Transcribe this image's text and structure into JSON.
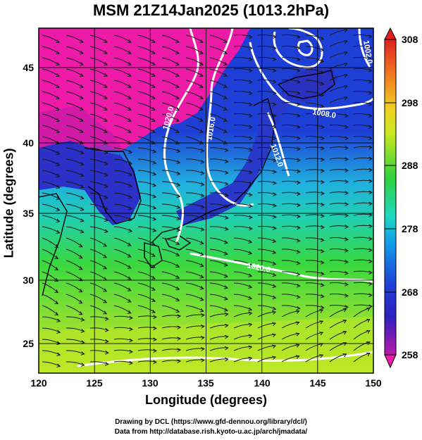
{
  "title": "MSM 21Z14Jan2025 (1013.2hPa)",
  "axes": {
    "xlabel": "Longitude (degrees)",
    "ylabel": "Latitude  (degrees)",
    "xticks": [
      "120",
      "125",
      "130",
      "135",
      "140",
      "145",
      "150"
    ],
    "yticks": [
      "45",
      "40",
      "35",
      "30",
      "25"
    ]
  },
  "colorbar": {
    "ticks": [
      "308",
      "298",
      "288",
      "278",
      "268",
      "258"
    ],
    "range": [
      258,
      308
    ]
  },
  "contour_labels": [
    "1020.0",
    "1016.0",
    "1012.0",
    "1008.0",
    "1002.0",
    "1020.0"
  ],
  "credits": [
    "Drawing by DCL (https://www.gfd-dennou.org/library/dcl/)",
    "Data from http://database.rish.kyoto-u.ac.jp/arch/jmadata/"
  ],
  "colors": {
    "magenta": "#ee1aa8",
    "blue": "#1e3fd6",
    "cyan": "#20c8e0",
    "green": "#30d040",
    "yellow": "#d0e820",
    "contour": "#ffffff"
  }
}
